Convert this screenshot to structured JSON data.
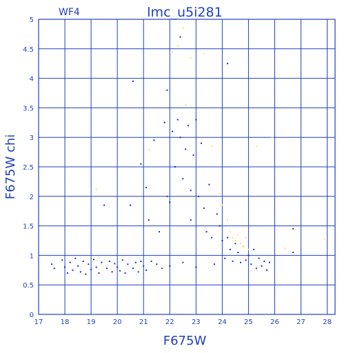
{
  "chart_data": {
    "type": "scatter",
    "title": "lmc_u5i281",
    "chip_label": "WF4",
    "xlabel": "F675W",
    "ylabel": "F675W chi",
    "xlim": [
      17,
      28.3
    ],
    "ylim": [
      0,
      5
    ],
    "xticks": [
      17,
      18,
      19,
      20,
      21,
      22,
      23,
      24,
      25,
      26,
      27,
      28
    ],
    "yticks": [
      0,
      0.5,
      1,
      1.5,
      2,
      2.5,
      3,
      3.5,
      4,
      4.5,
      5
    ],
    "ytick_labels": [
      "0",
      "0.5",
      "1",
      "1.5",
      "2",
      "2.5",
      "3",
      "3.5",
      "4",
      "4.5",
      "5"
    ],
    "grid": true,
    "colors": {
      "axis": "#1f3fbf",
      "main_points": "#1428d2",
      "highlight_points": "#ffe14d"
    },
    "series": [
      {
        "color": "#1428d2",
        "points": [
          [
            17.5,
            0.85
          ],
          [
            17.6,
            0.78
          ],
          [
            17.9,
            0.92
          ],
          [
            18.0,
            0.8
          ],
          [
            18.1,
            0.7
          ],
          [
            18.2,
            0.88
          ],
          [
            18.3,
            0.75
          ],
          [
            18.4,
            0.95
          ],
          [
            18.5,
            0.82
          ],
          [
            18.6,
            0.72
          ],
          [
            18.7,
            0.9
          ],
          [
            18.8,
            0.68
          ],
          [
            18.9,
            0.85
          ],
          [
            19.0,
            0.76
          ],
          [
            19.1,
            0.93
          ],
          [
            19.2,
            0.8
          ],
          [
            19.3,
            0.7
          ],
          [
            19.4,
            0.88
          ],
          [
            19.5,
            1.85
          ],
          [
            19.6,
            0.78
          ],
          [
            19.7,
            0.9
          ],
          [
            19.8,
            0.72
          ],
          [
            19.9,
            0.86
          ],
          [
            20.0,
            0.8
          ],
          [
            20.1,
            0.74
          ],
          [
            20.2,
            0.92
          ],
          [
            20.3,
            0.7
          ],
          [
            20.4,
            0.85
          ],
          [
            20.5,
            1.85
          ],
          [
            20.6,
            3.95
          ],
          [
            20.6,
            0.78
          ],
          [
            20.7,
            0.88
          ],
          [
            20.8,
            0.72
          ],
          [
            20.9,
            2.55
          ],
          [
            20.9,
            0.9
          ],
          [
            21.0,
            0.82
          ],
          [
            21.1,
            2.15
          ],
          [
            21.1,
            0.75
          ],
          [
            21.2,
            1.6
          ],
          [
            21.3,
            0.9
          ],
          [
            21.4,
            2.95
          ],
          [
            21.5,
            0.85
          ],
          [
            21.6,
            1.4
          ],
          [
            21.7,
            0.78
          ],
          [
            21.8,
            3.25
          ],
          [
            21.9,
            3.8
          ],
          [
            21.9,
            2.0
          ],
          [
            22.0,
            1.9
          ],
          [
            22.0,
            0.82
          ],
          [
            22.1,
            3.1
          ],
          [
            22.2,
            2.5
          ],
          [
            22.3,
            3.3
          ],
          [
            22.4,
            4.7
          ],
          [
            22.4,
            3.0
          ],
          [
            22.5,
            2.3
          ],
          [
            22.5,
            0.88
          ],
          [
            22.6,
            2.8
          ],
          [
            22.7,
            3.2
          ],
          [
            22.8,
            1.6
          ],
          [
            22.8,
            2.1
          ],
          [
            22.9,
            2.7
          ],
          [
            23.0,
            3.3
          ],
          [
            23.0,
            0.8
          ],
          [
            23.1,
            2.0
          ],
          [
            23.2,
            2.9
          ],
          [
            23.3,
            1.8
          ],
          [
            23.4,
            1.4
          ],
          [
            23.5,
            2.2
          ],
          [
            23.6,
            1.3
          ],
          [
            23.7,
            0.85
          ],
          [
            23.8,
            1.7
          ],
          [
            23.9,
            1.5
          ],
          [
            24.0,
            1.25
          ],
          [
            24.1,
            0.95
          ],
          [
            24.2,
            4.25
          ],
          [
            24.2,
            1.3
          ],
          [
            24.3,
            1.1
          ],
          [
            24.4,
            0.9
          ],
          [
            24.5,
            1.2
          ],
          [
            24.6,
            1.05
          ],
          [
            24.7,
            0.88
          ],
          [
            24.8,
            1.15
          ],
          [
            24.9,
            0.92
          ],
          [
            25.0,
            1.0
          ],
          [
            25.1,
            0.85
          ],
          [
            25.2,
            1.1
          ],
          [
            25.3,
            0.78
          ],
          [
            25.4,
            0.95
          ],
          [
            25.5,
            0.82
          ],
          [
            25.6,
            0.9
          ],
          [
            25.7,
            0.75
          ],
          [
            25.8,
            0.88
          ],
          [
            26.7,
            1.45
          ],
          [
            26.7,
            1.05
          ]
        ]
      },
      {
        "color": "#ffe14d",
        "points": [
          [
            19.2,
            2.12
          ],
          [
            21.2,
            2.78
          ],
          [
            22.1,
            4.45
          ],
          [
            22.3,
            4.55
          ],
          [
            22.5,
            4.85
          ],
          [
            22.6,
            3.55
          ],
          [
            22.8,
            4.35
          ],
          [
            23.3,
            4.42
          ],
          [
            23.6,
            2.85
          ],
          [
            23.9,
            2.05
          ],
          [
            24.0,
            1.85
          ],
          [
            24.2,
            1.6
          ],
          [
            24.3,
            1.4
          ],
          [
            24.4,
            1.3
          ],
          [
            24.5,
            1.25
          ],
          [
            24.6,
            1.35
          ],
          [
            24.7,
            1.2
          ],
          [
            24.8,
            1.15
          ],
          [
            24.9,
            1.3
          ],
          [
            25.0,
            1.1
          ],
          [
            25.3,
            2.85
          ],
          [
            25.9,
            3.0
          ],
          [
            26.4,
            1.12
          ],
          [
            27.9,
            1.28
          ]
        ]
      }
    ]
  }
}
